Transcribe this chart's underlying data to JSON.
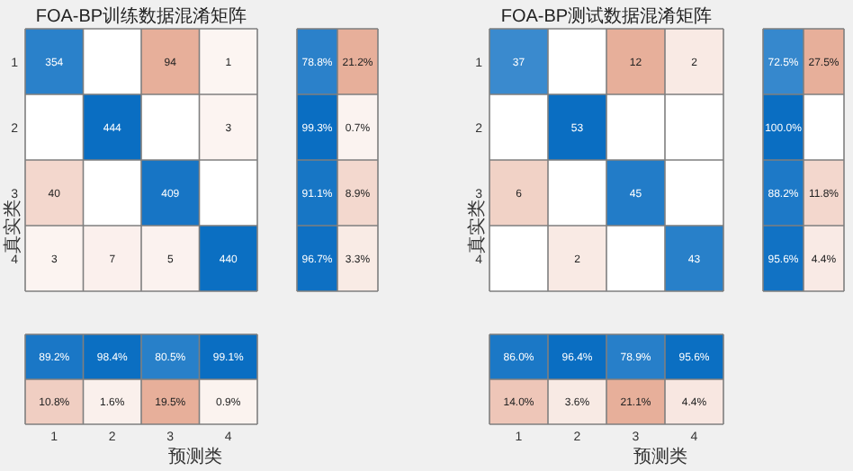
{
  "chart_data": [
    {
      "type": "heatmap",
      "title": "FOA-BP训练数据混淆矩阵",
      "ylabel": "真实类",
      "categories": [
        null,
        null,
        null,
        null
      ],
      "y_categories": [
        "1",
        "2",
        "3",
        "4"
      ],
      "data_labels": true,
      "cells": [
        [
          354,
          null,
          94,
          1
        ],
        [
          null,
          444,
          null,
          3
        ],
        [
          40,
          null,
          409,
          null
        ],
        [
          3,
          7,
          5,
          440
        ]
      ]
    },
    {
      "type": "heatmap",
      "categories": [
        null,
        null
      ],
      "y_categories": [
        null,
        null,
        null,
        null
      ],
      "tick_labels": false,
      "cells": [
        [
          78.8,
          21.2
        ],
        [
          99.3,
          0.7
        ],
        [
          91.1,
          8.9
        ],
        [
          96.7,
          3.3
        ]
      ],
      "cell_labels": [
        [
          "78.8%",
          "21.2%"
        ],
        [
          "99.3%",
          "0.7%"
        ],
        [
          "91.1%",
          "8.9%"
        ],
        [
          "96.7%",
          "3.3%"
        ]
      ]
    },
    {
      "type": "heatmap",
      "title": "FOA-BP测试数据混淆矩阵",
      "ylabel": "真实类",
      "categories": [
        null,
        null,
        null,
        null
      ],
      "y_categories": [
        "1",
        "2",
        "3",
        "4"
      ],
      "data_labels": true,
      "cells": [
        [
          37,
          null,
          12,
          2
        ],
        [
          null,
          53,
          null,
          null
        ],
        [
          6,
          null,
          45,
          null
        ],
        [
          null,
          2,
          null,
          43
        ]
      ]
    },
    {
      "type": "heatmap",
      "categories": [
        null,
        null
      ],
      "y_categories": [
        null,
        null,
        null,
        null
      ],
      "tick_labels": false,
      "cells": [
        [
          72.5,
          27.5
        ],
        [
          100.0,
          null
        ],
        [
          88.2,
          11.8
        ],
        [
          95.6,
          4.4
        ]
      ],
      "cell_labels": [
        [
          "72.5%",
          "27.5%"
        ],
        [
          "100.0%",
          null
        ],
        [
          "88.2%",
          "11.8%"
        ],
        [
          "95.6%",
          "4.4%"
        ]
      ]
    },
    {
      "type": "heatmap",
      "xlabel": "预测类",
      "categories": [
        "1",
        "2",
        "3",
        "4"
      ],
      "y_categories": [
        null,
        null
      ],
      "tick_labels": "x",
      "cells": [
        [
          89.2,
          98.4,
          80.5,
          99.1
        ],
        [
          10.8,
          1.6,
          19.5,
          0.9
        ]
      ],
      "cell_labels": [
        [
          "89.2%",
          "98.4%",
          "80.5%",
          "99.1%"
        ],
        [
          "10.8%",
          "1.6%",
          "19.5%",
          "0.9%"
        ]
      ]
    },
    {
      "type": "heatmap",
      "xlabel": "预测类",
      "categories": [
        "1",
        "2",
        "3",
        "4"
      ],
      "y_categories": [
        null,
        null
      ],
      "tick_labels": "x",
      "cells": [
        [
          86.0,
          96.4,
          78.9,
          95.6
        ],
        [
          14.0,
          3.6,
          21.1,
          4.4
        ]
      ],
      "cell_labels": [
        [
          "86.0%",
          "96.4%",
          "78.9%",
          "95.6%"
        ],
        [
          "14.0%",
          "3.6%",
          "21.1%",
          "4.4%"
        ]
      ]
    }
  ]
}
